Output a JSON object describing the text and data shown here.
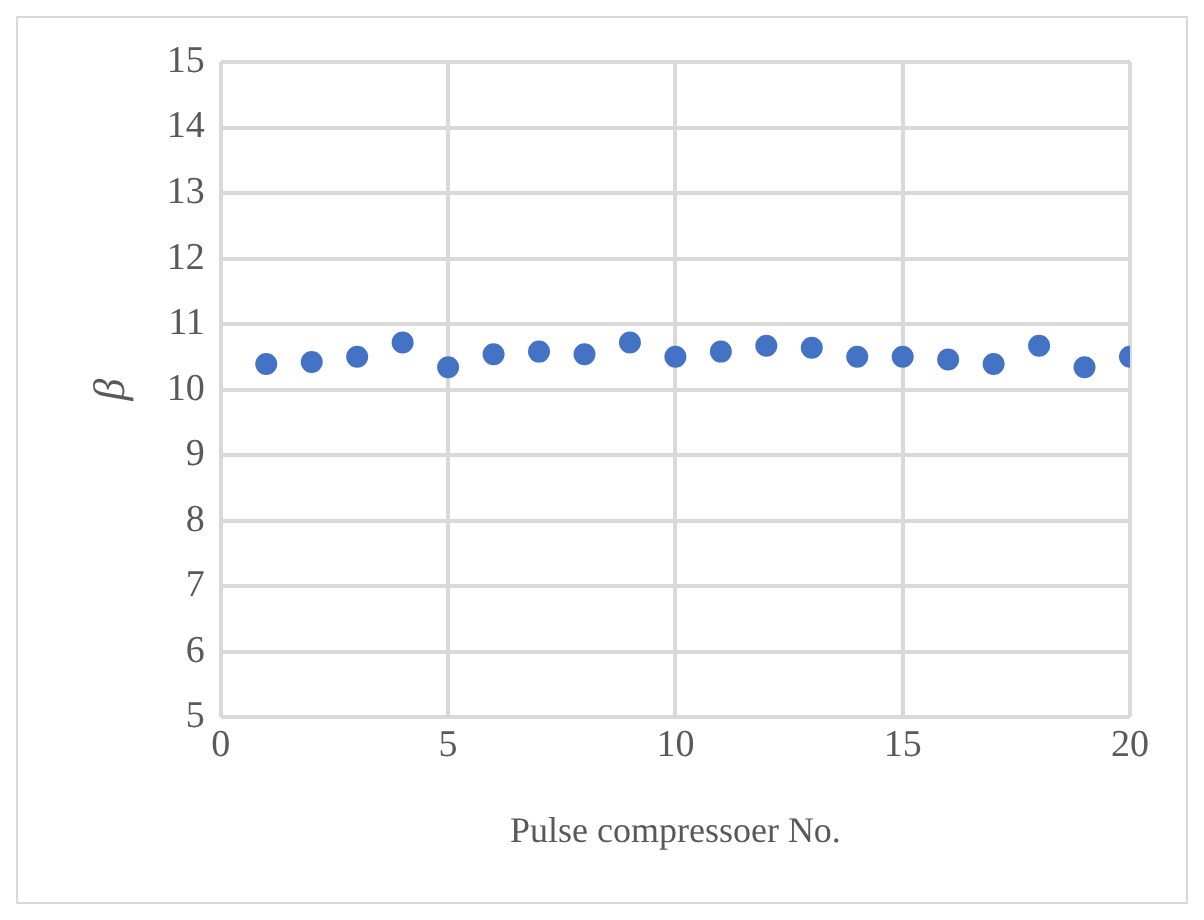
{
  "chart_data": {
    "type": "scatter",
    "xlabel": "Pulse compressoer No.",
    "ylabel": "β",
    "x": [
      1,
      2,
      3,
      4,
      5,
      6,
      7,
      8,
      9,
      10,
      11,
      12,
      13,
      14,
      15,
      16,
      17,
      18,
      19,
      20
    ],
    "series": [
      {
        "color": "#4472c4",
        "values": [
          10.39,
          10.42,
          10.5,
          10.72,
          10.34,
          10.54,
          10.58,
          10.54,
          10.72,
          10.5,
          10.58,
          10.67,
          10.64,
          10.5,
          10.5,
          10.46,
          10.39,
          10.67,
          10.34,
          10.5
        ]
      }
    ],
    "xlim": [
      0,
      20
    ],
    "xticks": [
      0,
      5,
      10,
      15,
      20
    ],
    "ylim": [
      5,
      15
    ],
    "yticks": [
      5,
      6,
      7,
      8,
      9,
      10,
      11,
      12,
      13,
      14,
      15
    ],
    "grid": true,
    "marker": "circle",
    "legend": false
  }
}
